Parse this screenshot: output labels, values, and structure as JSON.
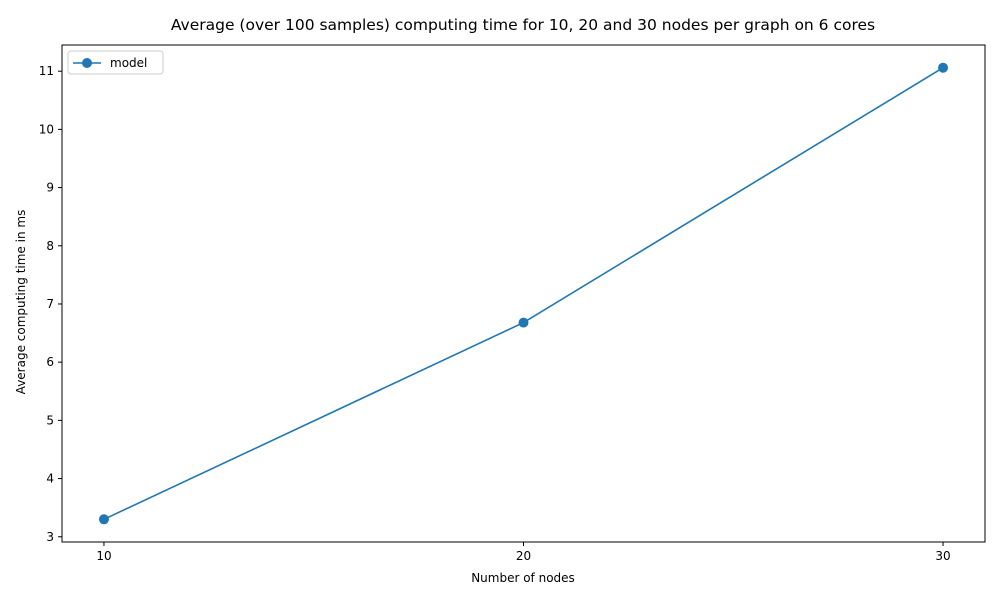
{
  "chart_data": {
    "type": "line",
    "title": "Average (over 100 samples) computing time for 10, 20 and 30 nodes per graph on 6 cores",
    "xlabel": "Number of nodes",
    "ylabel": "Average computing time in ms",
    "x": [
      10,
      20,
      30
    ],
    "xticks": [
      "10",
      "20",
      "30"
    ],
    "yticks": [
      "3",
      "4",
      "5",
      "6",
      "7",
      "8",
      "9",
      "10",
      "11"
    ],
    "xlim": [
      9,
      31
    ],
    "ylim": [
      2.91,
      11.45
    ],
    "grid": false,
    "legend_position": "top-left",
    "series": [
      {
        "name": "model",
        "values": [
          3.3,
          6.68,
          11.06
        ],
        "color": "#1f77b4",
        "marker": "circle"
      }
    ]
  }
}
